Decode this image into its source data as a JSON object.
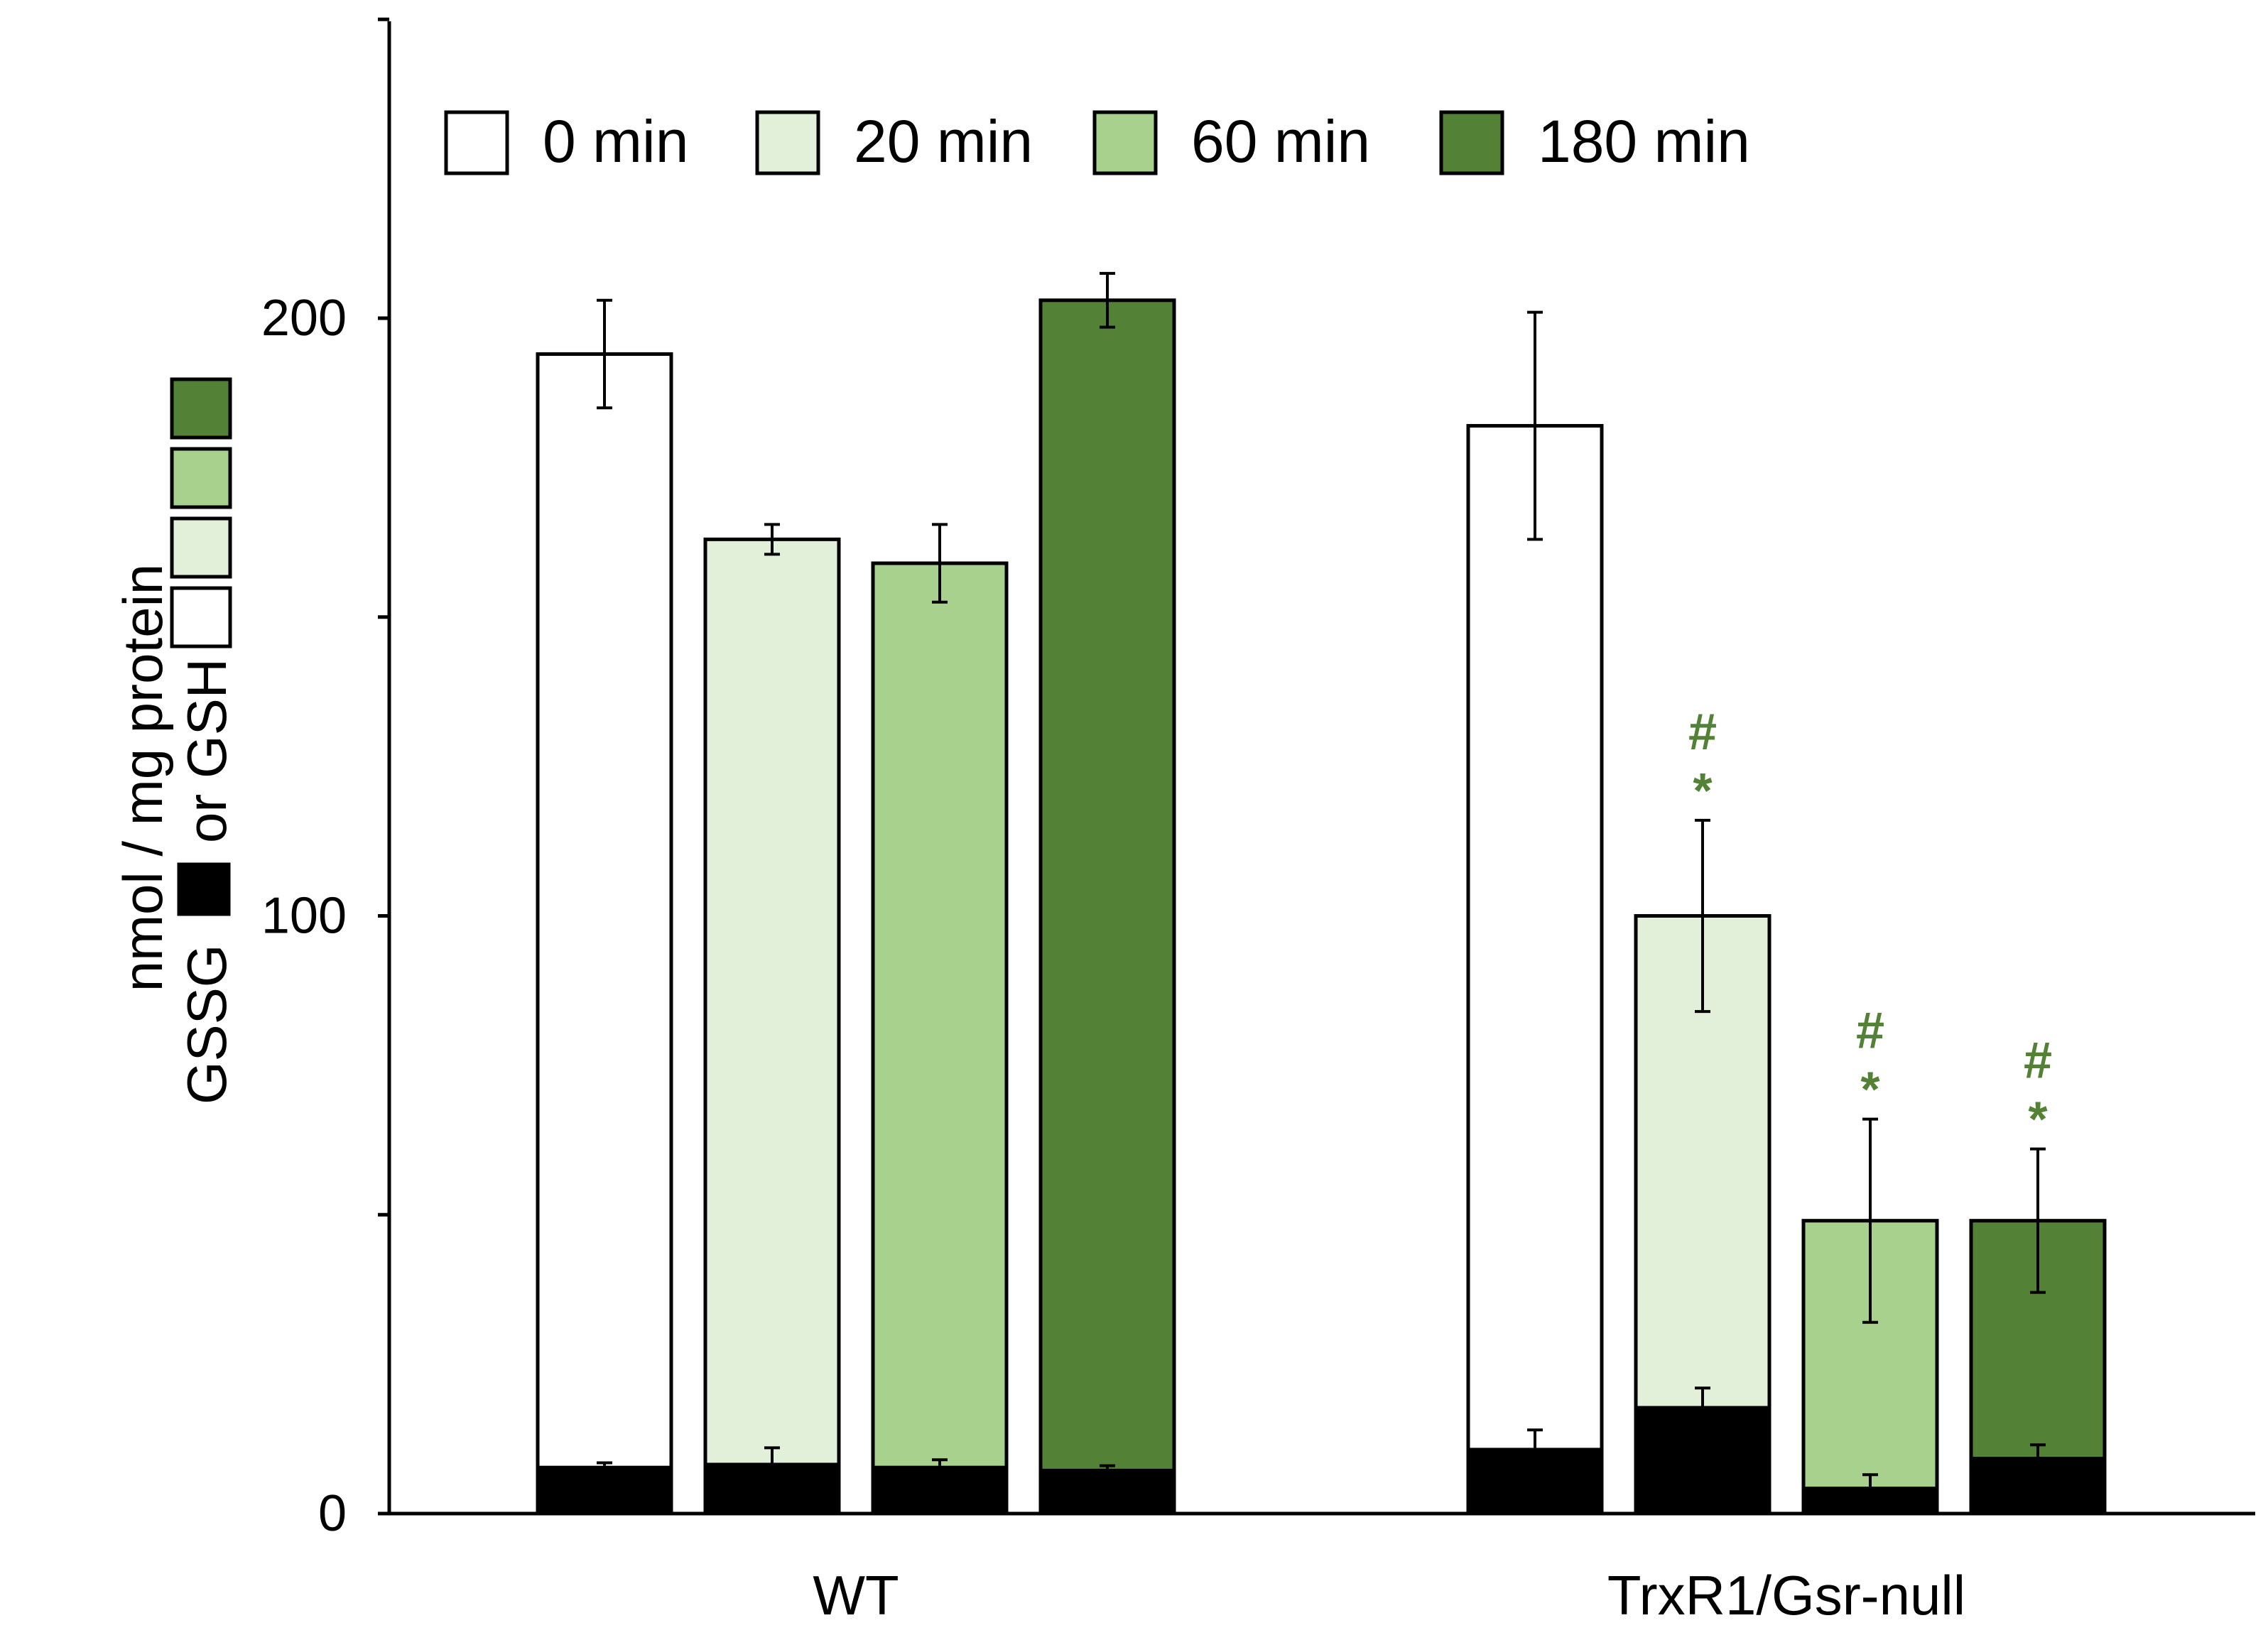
{
  "chart_data": {
    "type": "bar",
    "subtype": "grouped, with overlaid GSSG bars and error bars",
    "categories": [
      "WT",
      "TrxR1/Gsr-null"
    ],
    "ylabel_line1": "nmol / mg protein",
    "ylabel_line2_parts": [
      "GSSG",
      "or GSH"
    ],
    "ylim": [
      0,
      250
    ],
    "yticks": [
      0,
      50,
      100,
      150,
      200,
      250
    ],
    "ytick_labels": [
      "0",
      "",
      "100",
      "",
      "200",
      ""
    ],
    "legend": {
      "placement": "top-left"
    },
    "series": [
      {
        "name": "0 min",
        "color": "#ffffff",
        "gsh": [
          194,
          182
        ],
        "gsh_err": [
          9,
          19
        ],
        "gssg": [
          8,
          11
        ],
        "gssg_err": [
          0.5,
          3
        ]
      },
      {
        "name": "20 min",
        "color": "#e2efd9",
        "gsh": [
          163,
          100
        ],
        "gsh_err": [
          2.5,
          16
        ],
        "gssg": [
          8.5,
          18
        ],
        "gssg_err": [
          2.5,
          3
        ]
      },
      {
        "name": "60 min",
        "color": "#a9d18e",
        "gsh": [
          159,
          49
        ],
        "gsh_err": [
          6.5,
          17
        ],
        "gssg": [
          8,
          4.5
        ],
        "gssg_err": [
          1,
          2
        ]
      },
      {
        "name": "180 min",
        "color": "#538135",
        "gsh": [
          203,
          49
        ],
        "gsh_err": [
          4.5,
          12
        ],
        "gssg": [
          7.5,
          9.5
        ],
        "gssg_err": [
          0.5,
          2
        ]
      }
    ],
    "annotations": [
      {
        "group": "TrxR1/Gsr-null",
        "series": "20 min",
        "lines": [
          "#",
          "*"
        ]
      },
      {
        "group": "TrxR1/Gsr-null",
        "series": "60 min",
        "lines": [
          "#",
          "*"
        ]
      },
      {
        "group": "TrxR1/Gsr-null",
        "series": "180 min",
        "lines": [
          "#",
          "*"
        ]
      }
    ],
    "annotation_color": "#538135",
    "gssg_color": "#000000"
  }
}
